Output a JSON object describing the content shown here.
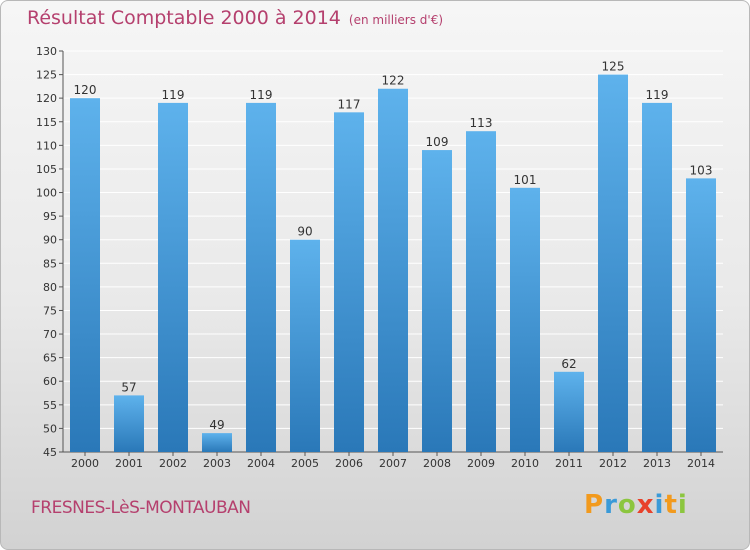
{
  "chart_data": {
    "type": "bar",
    "title": "Résultat Comptable 2000 à 2014",
    "subtitle": "(en milliers d'€)",
    "categories": [
      "2000",
      "2001",
      "2002",
      "2003",
      "2004",
      "2005",
      "2006",
      "2007",
      "2008",
      "2009",
      "2010",
      "2011",
      "2012",
      "2013",
      "2014"
    ],
    "values": [
      120,
      57,
      119,
      49,
      119,
      90,
      117,
      122,
      109,
      113,
      101,
      62,
      125,
      119,
      103
    ],
    "ylim": [
      45,
      130
    ],
    "ytick_step": 5,
    "xlabel": "",
    "ylabel": "",
    "grid": true,
    "bar_color_top": "#5eb2ec",
    "bar_color_bottom": "#2a78b8"
  },
  "footer": {
    "place": "FRESNES-LèS-MONTAUBAN",
    "logo_letters": [
      "P",
      "r",
      "o",
      "x",
      "i",
      "t",
      "i"
    ],
    "logo_colors": [
      "#f29a1d",
      "#3a9ad8",
      "#8cc63f",
      "#e8422b",
      "#3a9ad8",
      "#f29a1d",
      "#8cc63f"
    ]
  },
  "colors": {
    "title": "#b5406e",
    "grid": "#ffffff"
  }
}
